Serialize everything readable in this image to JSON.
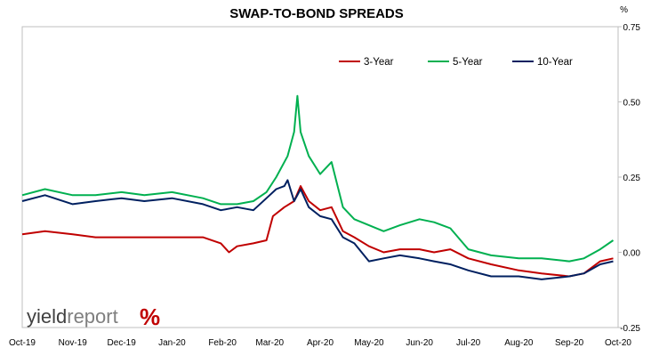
{
  "chart_data": {
    "type": "line",
    "title": "SWAP-TO-BOND SPREADS",
    "ylabel": "%",
    "ylim": [
      -0.25,
      0.75
    ],
    "yticks": [
      "0.75",
      "0.50",
      "0.25",
      "0.00",
      "-0.25"
    ],
    "ytick_values": [
      0.75,
      0.5,
      0.25,
      0.0,
      -0.25
    ],
    "xlim": [
      "2019-10-01",
      "2020-10-01"
    ],
    "xticks": [
      {
        "label": "Oct-19",
        "date": "2019-10-01"
      },
      {
        "label": "Nov-19",
        "date": "2019-11-01"
      },
      {
        "label": "Dec-19",
        "date": "2019-12-01"
      },
      {
        "label": "Jan-20",
        "date": "2020-01-01"
      },
      {
        "label": "Feb-20",
        "date": "2020-02-01"
      },
      {
        "label": "Mar-20",
        "date": "2020-03-01"
      },
      {
        "label": "Apr-20",
        "date": "2020-04-01"
      },
      {
        "label": "May-20",
        "date": "2020-05-01"
      },
      {
        "label": "Jun-20",
        "date": "2020-06-01"
      },
      {
        "label": "Jul-20",
        "date": "2020-07-01"
      },
      {
        "label": "Aug-20",
        "date": "2020-08-01"
      },
      {
        "label": "Sep-20",
        "date": "2020-09-01"
      },
      {
        "label": "Oct-20",
        "date": "2020-10-01"
      }
    ],
    "grid": false,
    "legend_position": "top-right",
    "series": [
      {
        "name": "3-Year",
        "color": "#c00000",
        "points": [
          [
            "2019-10-01",
            0.06
          ],
          [
            "2019-10-15",
            0.07
          ],
          [
            "2019-11-01",
            0.06
          ],
          [
            "2019-11-15",
            0.05
          ],
          [
            "2019-12-01",
            0.05
          ],
          [
            "2019-12-15",
            0.05
          ],
          [
            "2020-01-01",
            0.05
          ],
          [
            "2020-01-20",
            0.05
          ],
          [
            "2020-01-31",
            0.03
          ],
          [
            "2020-02-05",
            0.0
          ],
          [
            "2020-02-10",
            0.02
          ],
          [
            "2020-02-20",
            0.03
          ],
          [
            "2020-02-28",
            0.04
          ],
          [
            "2020-03-03",
            0.12
          ],
          [
            "2020-03-10",
            0.15
          ],
          [
            "2020-03-16",
            0.17
          ],
          [
            "2020-03-20",
            0.22
          ],
          [
            "2020-03-25",
            0.17
          ],
          [
            "2020-04-01",
            0.14
          ],
          [
            "2020-04-08",
            0.15
          ],
          [
            "2020-04-15",
            0.07
          ],
          [
            "2020-04-22",
            0.05
          ],
          [
            "2020-05-01",
            0.02
          ],
          [
            "2020-05-10",
            0.0
          ],
          [
            "2020-05-20",
            0.01
          ],
          [
            "2020-06-01",
            0.01
          ],
          [
            "2020-06-10",
            0.0
          ],
          [
            "2020-06-20",
            0.01
          ],
          [
            "2020-07-01",
            -0.02
          ],
          [
            "2020-07-15",
            -0.04
          ],
          [
            "2020-08-01",
            -0.06
          ],
          [
            "2020-08-15",
            -0.07
          ],
          [
            "2020-09-01",
            -0.08
          ],
          [
            "2020-09-10",
            -0.07
          ],
          [
            "2020-09-20",
            -0.03
          ],
          [
            "2020-09-28",
            -0.02
          ]
        ]
      },
      {
        "name": "5-Year",
        "color": "#00b050",
        "points": [
          [
            "2019-10-01",
            0.19
          ],
          [
            "2019-10-15",
            0.21
          ],
          [
            "2019-11-01",
            0.19
          ],
          [
            "2019-11-15",
            0.19
          ],
          [
            "2019-12-01",
            0.2
          ],
          [
            "2019-12-15",
            0.19
          ],
          [
            "2020-01-01",
            0.2
          ],
          [
            "2020-01-20",
            0.18
          ],
          [
            "2020-01-31",
            0.16
          ],
          [
            "2020-02-10",
            0.16
          ],
          [
            "2020-02-20",
            0.17
          ],
          [
            "2020-02-28",
            0.2
          ],
          [
            "2020-03-05",
            0.25
          ],
          [
            "2020-03-12",
            0.32
          ],
          [
            "2020-03-16",
            0.4
          ],
          [
            "2020-03-18",
            0.52
          ],
          [
            "2020-03-20",
            0.4
          ],
          [
            "2020-03-25",
            0.32
          ],
          [
            "2020-04-01",
            0.26
          ],
          [
            "2020-04-08",
            0.3
          ],
          [
            "2020-04-15",
            0.15
          ],
          [
            "2020-04-22",
            0.11
          ],
          [
            "2020-05-01",
            0.09
          ],
          [
            "2020-05-10",
            0.07
          ],
          [
            "2020-05-20",
            0.09
          ],
          [
            "2020-06-01",
            0.11
          ],
          [
            "2020-06-10",
            0.1
          ],
          [
            "2020-06-20",
            0.08
          ],
          [
            "2020-07-01",
            0.01
          ],
          [
            "2020-07-15",
            -0.01
          ],
          [
            "2020-08-01",
            -0.02
          ],
          [
            "2020-08-15",
            -0.02
          ],
          [
            "2020-09-01",
            -0.03
          ],
          [
            "2020-09-10",
            -0.02
          ],
          [
            "2020-09-20",
            0.01
          ],
          [
            "2020-09-28",
            0.04
          ]
        ]
      },
      {
        "name": "10-Year",
        "color": "#002060",
        "points": [
          [
            "2019-10-01",
            0.17
          ],
          [
            "2019-10-15",
            0.19
          ],
          [
            "2019-11-01",
            0.16
          ],
          [
            "2019-11-15",
            0.17
          ],
          [
            "2019-12-01",
            0.18
          ],
          [
            "2019-12-15",
            0.17
          ],
          [
            "2020-01-01",
            0.18
          ],
          [
            "2020-01-20",
            0.16
          ],
          [
            "2020-01-31",
            0.14
          ],
          [
            "2020-02-10",
            0.15
          ],
          [
            "2020-02-20",
            0.14
          ],
          [
            "2020-02-28",
            0.18
          ],
          [
            "2020-03-05",
            0.21
          ],
          [
            "2020-03-10",
            0.22
          ],
          [
            "2020-03-12",
            0.24
          ],
          [
            "2020-03-16",
            0.17
          ],
          [
            "2020-03-20",
            0.21
          ],
          [
            "2020-03-25",
            0.15
          ],
          [
            "2020-04-01",
            0.12
          ],
          [
            "2020-04-08",
            0.11
          ],
          [
            "2020-04-15",
            0.05
          ],
          [
            "2020-04-22",
            0.03
          ],
          [
            "2020-05-01",
            -0.03
          ],
          [
            "2020-05-10",
            -0.02
          ],
          [
            "2020-05-20",
            -0.01
          ],
          [
            "2020-06-01",
            -0.02
          ],
          [
            "2020-06-10",
            -0.03
          ],
          [
            "2020-06-20",
            -0.04
          ],
          [
            "2020-07-01",
            -0.06
          ],
          [
            "2020-07-15",
            -0.08
          ],
          [
            "2020-08-01",
            -0.08
          ],
          [
            "2020-08-15",
            -0.09
          ],
          [
            "2020-09-01",
            -0.08
          ],
          [
            "2020-09-10",
            -0.07
          ],
          [
            "2020-09-20",
            -0.04
          ],
          [
            "2020-09-28",
            -0.03
          ]
        ]
      }
    ]
  },
  "logo": {
    "text_light": "yield",
    "text_dark": "report",
    "symbol": "%"
  }
}
